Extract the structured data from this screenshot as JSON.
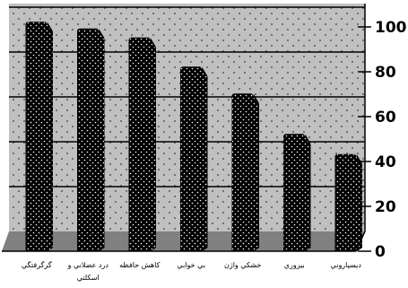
{
  "chart_data": {
    "type": "bar",
    "style": "3d-bars-with-dotted-back-wall",
    "categories": [
      "گرگرفتگي",
      "درد عضلاني و اسكلتي",
      "كاهش حافظه",
      "بي خوابي",
      "خشكي واژن",
      "بيزوري",
      "ديسپاروني"
    ],
    "values": [
      95,
      92,
      88,
      75,
      63,
      45,
      36
    ],
    "ylim": [
      0,
      100
    ],
    "yticks": [
      "0",
      "20",
      "40",
      "60",
      "80",
      "100"
    ],
    "yaxis_side": "right",
    "grid": true,
    "title": "",
    "xlabel": "",
    "ylabel": "",
    "colors": {
      "wall": "#c0c0c0",
      "wall_dots": "#3a3a3a",
      "floor": "#808080",
      "bar": "#000000",
      "bar_dots": "#ffffff",
      "grid": "#000000"
    }
  }
}
